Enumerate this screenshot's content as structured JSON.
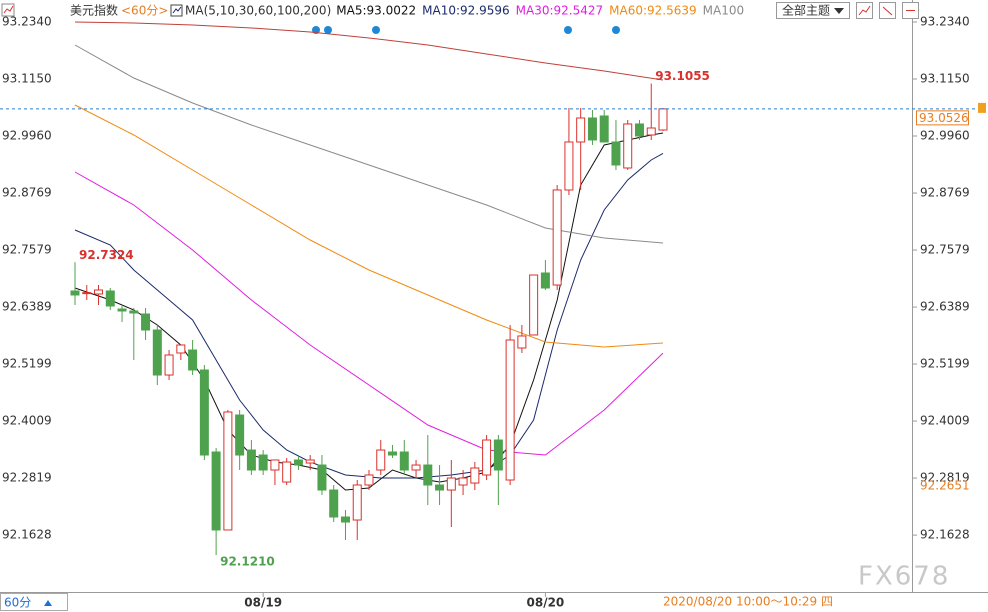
{
  "chart_data": {
    "type": "candlestick",
    "categories": [
      null,
      null,
      null,
      null,
      null,
      null,
      null,
      null,
      null,
      null,
      null,
      null,
      null,
      null,
      null,
      null,
      "08/19",
      null,
      null,
      null,
      null,
      null,
      null,
      null,
      null,
      null,
      null,
      null,
      null,
      null,
      null,
      null,
      null,
      null,
      null,
      null,
      null,
      null,
      null,
      null,
      "08/20",
      null,
      null,
      null,
      null,
      null,
      null,
      null,
      null,
      null,
      null
    ],
    "open": [
      92.6724,
      92.6682,
      92.6662,
      92.6724,
      92.6348,
      92.6307,
      92.6244,
      92.591,
      92.497,
      92.543,
      92.5492,
      92.5075,
      92.3363,
      92.1735,
      92.4135,
      92.3404,
      92.33,
      92.2987,
      92.2736,
      92.3196,
      92.3133,
      92.3091,
      92.2569,
      92.2006,
      92.1943,
      92.2674,
      92.2987,
      92.3363,
      92.3363,
      92.2987,
      92.3091,
      92.2674,
      92.2569,
      92.2674,
      92.2715,
      92.2883,
      92.3613,
      92.2778,
      92.5534,
      92.5806,
      92.71,
      92.6849,
      92.8833,
      92.9835,
      93.0336,
      93.0378,
      92.9835,
      92.9292,
      93.0211,
      92.9981,
      93.0085
    ],
    "high": [
      92.7324,
      92.6849,
      92.6849,
      92.6787,
      92.6432,
      92.6369,
      92.6369,
      92.6014,
      92.5492,
      92.5597,
      92.5701,
      92.5179,
      92.3446,
      92.424,
      92.424,
      92.3613,
      92.3404,
      92.3196,
      92.3237,
      92.33,
      92.33,
      92.33,
      92.2674,
      92.2152,
      92.2778,
      92.2987,
      92.3613,
      92.3509,
      92.3613,
      92.3196,
      92.3718,
      92.3091,
      92.3196,
      92.2987,
      92.3154,
      92.3718,
      92.3718,
      92.6014,
      92.6014,
      92.7058,
      92.7371,
      92.8937,
      93.0545,
      93.0545,
      93.0503,
      93.0503,
      93.0294,
      93.0294,
      93.0294,
      93.1055,
      93.0545
    ],
    "low": [
      92.6432,
      92.6536,
      92.6432,
      92.6327,
      92.6077,
      92.5284,
      92.5701,
      92.4762,
      92.4866,
      92.5284,
      92.497,
      92.3196,
      92.121,
      92.1735,
      92.2987,
      92.2883,
      92.2883,
      92.2674,
      92.2674,
      92.2987,
      92.2987,
      92.2465,
      92.1901,
      92.1526,
      92.1526,
      92.2569,
      92.2883,
      92.3237,
      92.2883,
      92.282,
      92.2256,
      92.2256,
      92.1797,
      92.2465,
      92.2569,
      92.2778,
      92.2256,
      92.2674,
      92.543,
      92.5806,
      92.6745,
      92.6745,
      92.8728,
      92.8833,
      92.9772,
      92.9835,
      92.925,
      92.925,
      92.9877,
      92.9877,
      93.0064
    ],
    "close": [
      92.6641,
      92.669,
      92.6745,
      92.6411,
      92.6307,
      92.6265,
      92.591,
      92.497,
      92.5388,
      92.5597,
      92.5075,
      92.33,
      92.1735,
      92.4198,
      92.33,
      92.2987,
      92.2987,
      92.3196,
      92.3154,
      92.3091,
      92.3196,
      92.2569,
      92.2006,
      92.1901,
      92.2674,
      92.2883,
      92.3404,
      92.33,
      92.2987,
      92.3091,
      92.2674,
      92.2569,
      92.282,
      92.282,
      92.3029,
      92.3613,
      92.2987,
      92.5701,
      92.5785,
      92.7058,
      92.6787,
      92.8833,
      92.9835,
      93.0336,
      92.9877,
      92.9835,
      92.9355,
      93.0211,
      92.996,
      93.0127,
      93.0526
    ],
    "up_color": "#d9312b",
    "down_color": "#4ea24e",
    "series": [
      {
        "name": "MA5:93.0022",
        "color": "#111111",
        "x": [
          0,
          3,
          5,
          7,
          9,
          11,
          13,
          15,
          17,
          19,
          21,
          23,
          25,
          27,
          29,
          31,
          33,
          35,
          37,
          39,
          41,
          43,
          45,
          47,
          49,
          50
        ],
        "values": [
          92.6787,
          92.6536,
          92.6327,
          92.6014,
          92.5597,
          92.4866,
          92.3822,
          92.33,
          92.3154,
          92.3091,
          92.2987,
          92.2569,
          92.2611,
          92.2987,
          92.282,
          92.2736,
          92.282,
          92.2945,
          92.3509,
          92.4866,
          92.6536,
          92.8937,
          92.9772,
          92.9877,
          92.9981,
          93.0022
        ]
      },
      {
        "name": "MA10:92.9596",
        "color": "#1c2a6b",
        "x": [
          0,
          3,
          5,
          8,
          10,
          12,
          14,
          16,
          18,
          20,
          23,
          26,
          29,
          32,
          35,
          37,
          39,
          41,
          43,
          45,
          47,
          49,
          50
        ],
        "values": [
          92.7998,
          92.7684,
          92.7162,
          92.6536,
          92.6119,
          92.5284,
          92.4449,
          92.3822,
          92.3404,
          92.3154,
          92.2883,
          92.282,
          92.282,
          92.2883,
          92.2987,
          92.33,
          92.4031,
          92.591,
          92.7371,
          92.8415,
          92.9041,
          92.9459,
          92.9596
        ]
      },
      {
        "name": "MA30:92.5427",
        "color": "#e020e0",
        "x": [
          0,
          5,
          10,
          15,
          20,
          25,
          30,
          35,
          40,
          45,
          50
        ],
        "values": [
          92.9208,
          92.852,
          92.758,
          92.6536,
          92.5597,
          92.4762,
          92.3926,
          92.3404,
          92.33,
          92.424,
          92.5427
        ]
      },
      {
        "name": "MA60:92.5639",
        "color": "#f08a10",
        "x": [
          0,
          5,
          10,
          15,
          20,
          25,
          30,
          35,
          40,
          45,
          50
        ],
        "values": [
          93.0607,
          92.9981,
          92.925,
          92.852,
          92.7789,
          92.7162,
          92.6641,
          92.6119,
          92.5659,
          92.5555,
          92.5639
        ]
      },
      {
        "name": "MA100",
        "color": "#8a8a8a",
        "x": [
          0,
          5,
          10,
          15,
          20,
          25,
          30,
          35,
          40,
          45,
          50
        ],
        "values": [
          93.186,
          93.1171,
          93.0649,
          93.019,
          92.9772,
          92.9355,
          92.8937,
          92.852,
          92.8039,
          92.7831,
          92.7726
        ]
      },
      {
        "color": "#c0403a",
        "x": [
          0,
          5,
          10,
          15,
          20,
          25,
          30,
          35,
          40,
          45,
          50
        ],
        "values": [
          93.234,
          93.2319,
          93.2277,
          93.2215,
          93.2131,
          93.2006,
          93.186,
          93.1672,
          93.1484,
          93.1317,
          93.1129
        ]
      }
    ],
    "ylim": [
      92.0482,
      93.2632
    ],
    "yticks": [
      {
        "value": 93.234,
        "label": "93.2340"
      },
      {
        "value": 93.115,
        "label": "93.1150"
      },
      {
        "value": 92.996,
        "label": "92.9960"
      },
      92.8769,
      92.7579,
      92.6389,
      92.5199,
      92.4009,
      92.2819,
      92.1628
    ],
    "annotations": [
      {
        "value": 93.1055,
        "label": "93.1055",
        "color": "#d9312b"
      },
      {
        "value": 92.7324,
        "label": "92.7324",
        "color": "#d9312b"
      },
      {
        "value": 92.121,
        "label": "92.1210",
        "color": "#4ea24e"
      }
    ],
    "reference_price": 92.2651,
    "indicator": "MA(5,10,30,60,100,200)"
  },
  "ui": {
    "symbol": "美元指数",
    "period_tag": "<60分>",
    "theme_button": "全部主题",
    "period": "60分",
    "timestamp": "2020/08/20 10:00～10:29 四",
    "watermark": "FX678"
  }
}
